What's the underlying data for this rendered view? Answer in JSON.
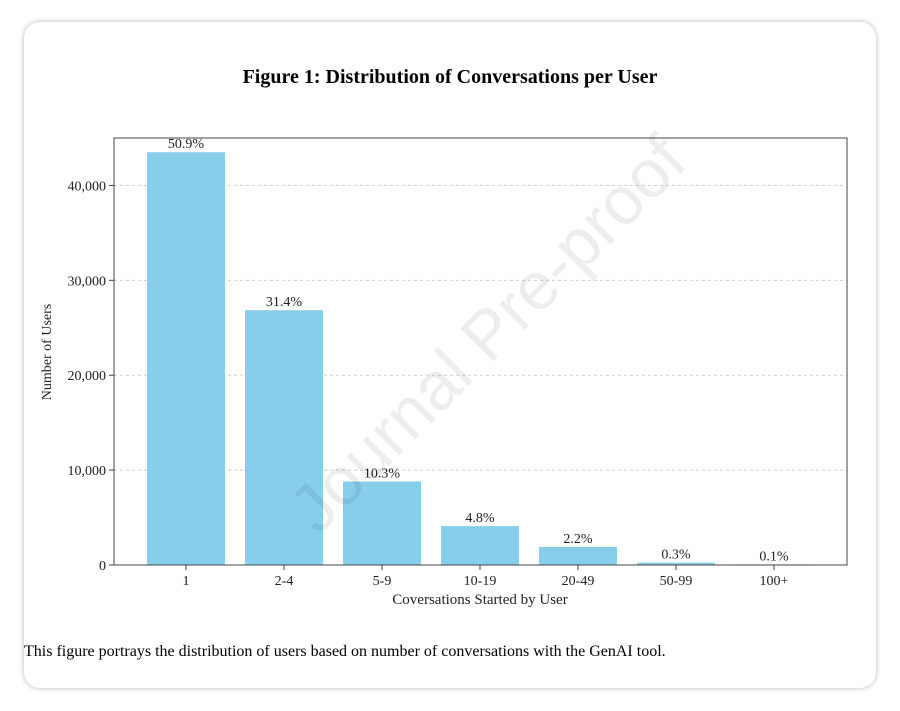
{
  "figure": {
    "title": "Figure 1: Distribution of Conversations per User",
    "caption": "This figure portrays the distribution of users based on number of conversations with the GenAI tool.",
    "watermark": "Journal Pre-proof"
  },
  "chart_data": {
    "type": "bar",
    "title": "Figure 1: Distribution of Conversations per User",
    "xlabel": "Coversations Started by User",
    "ylabel": "Number of Users",
    "categories": [
      "1",
      "2-4",
      "5-9",
      "10-19",
      "20-49",
      "50-99",
      "100+"
    ],
    "values": [
      43500,
      26850,
      8800,
      4100,
      1900,
      250,
      60
    ],
    "data_labels": [
      "50.9%",
      "31.4%",
      "10.3%",
      "4.8%",
      "2.2%",
      "0.3%",
      "0.1%"
    ],
    "ylim": [
      0,
      45000
    ],
    "yticks": [
      0,
      10000,
      20000,
      30000,
      40000
    ],
    "ytick_labels": [
      "0",
      "10,000",
      "20,000",
      "30,000",
      "40,000"
    ],
    "grid": "horizontal dashed",
    "bar_color": "#87CEEB",
    "legend": "none"
  }
}
